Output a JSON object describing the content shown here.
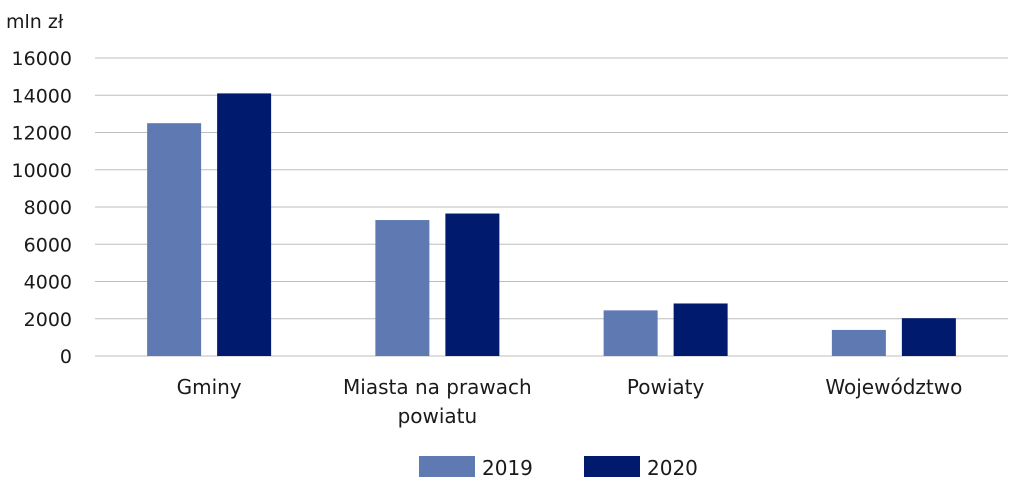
{
  "chart_data": {
    "type": "bar",
    "unit_label": "mln zł",
    "categories": [
      [
        "Gminy"
      ],
      [
        "Miasta na prawach",
        "powiatu"
      ],
      [
        "Powiaty"
      ],
      [
        "Województwo"
      ]
    ],
    "series": [
      {
        "name": "2019",
        "color": "#5f79b3",
        "values": [
          12500,
          7300,
          2450,
          1400
        ]
      },
      {
        "name": "2020",
        "color": "#001b6e",
        "values": [
          14100,
          7650,
          2820,
          2030
        ]
      }
    ],
    "ylim": [
      0,
      16000
    ],
    "yticks": [
      0,
      2000,
      4000,
      6000,
      8000,
      10000,
      12000,
      14000,
      16000
    ],
    "grid": true,
    "legend_position": "bottom"
  }
}
